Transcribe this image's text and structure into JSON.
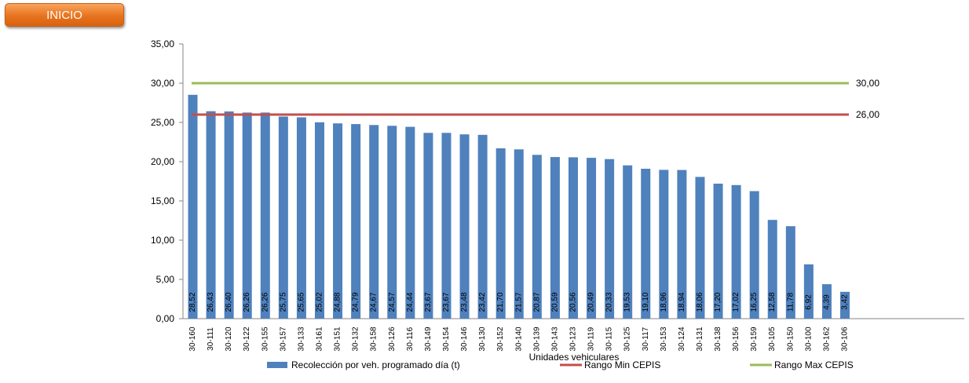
{
  "header": {
    "home_button_label": "INICIO"
  },
  "chart_data": {
    "type": "bar",
    "title": "",
    "xlabel": "Unidades vehiculares",
    "ylabel": "",
    "ylim": [
      0,
      35
    ],
    "yticks": [
      "0,00",
      "5,00",
      "10,00",
      "15,00",
      "20,00",
      "25,00",
      "30,00",
      "35,00"
    ],
    "categories": [
      "30-160",
      "30-111",
      "30-120",
      "30-122",
      "30-155",
      "30-157",
      "30-133",
      "30-161",
      "30-151",
      "30-132",
      "30-158",
      "30-126",
      "30-116",
      "30-149",
      "30-154",
      "30-146",
      "30-130",
      "30-152",
      "30-140",
      "30-139",
      "30-143",
      "30-123",
      "30-119",
      "30-115",
      "30-125",
      "30-117",
      "30-153",
      "30-124",
      "30-131",
      "30-138",
      "30-156",
      "30-159",
      "30-105",
      "30-150",
      "30-100",
      "30-162",
      "30-106"
    ],
    "series": [
      {
        "name": "Recolección por veh. programado día (t)",
        "color": "#4f81bd",
        "values": [
          28.52,
          26.43,
          26.4,
          26.26,
          26.26,
          25.75,
          25.65,
          25.02,
          24.88,
          24.79,
          24.67,
          24.57,
          24.44,
          23.67,
          23.67,
          23.48,
          23.42,
          21.7,
          21.57,
          20.87,
          20.59,
          20.56,
          20.49,
          20.33,
          19.53,
          19.1,
          18.96,
          18.94,
          18.06,
          17.2,
          17.02,
          16.25,
          12.58,
          11.78,
          6.92,
          4.39,
          3.42
        ],
        "labels": [
          "28,52",
          "26,43",
          "26,40",
          "26,26",
          "26,26",
          "25,75",
          "25,65",
          "25,02",
          "24,88",
          "24,79",
          "24,67",
          "24,57",
          "24,44",
          "23,67",
          "23,67",
          "23,48",
          "23,42",
          "21,70",
          "21,57",
          "20,87",
          "20,59",
          "20,56",
          "20,49",
          "20,33",
          "19,53",
          "19,10",
          "18,96",
          "18,94",
          "18,06",
          "17,20",
          "17,02",
          "16,25",
          "12,58",
          "11,78",
          "6,92",
          "4,39",
          "3,42"
        ]
      }
    ],
    "reference_lines": [
      {
        "name": "Rango Min CEPIS",
        "value": 26,
        "label": "26,00",
        "color": "#c0504d"
      },
      {
        "name": "Rango Max CEPIS",
        "value": 30,
        "label": "30,00",
        "color": "#9bbb59"
      }
    ],
    "grid": false,
    "legend_position": "bottom"
  }
}
